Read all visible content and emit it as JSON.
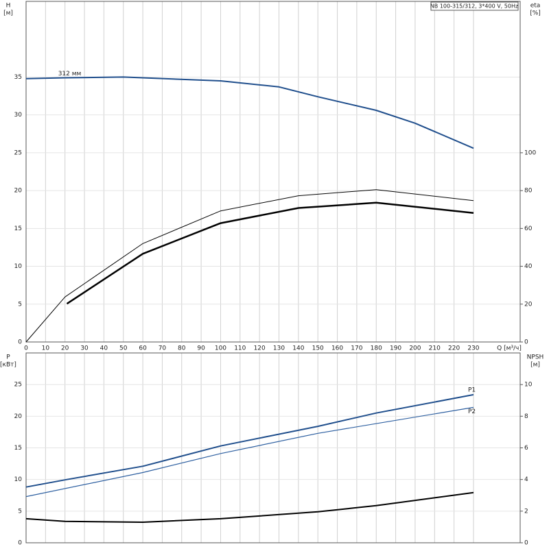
{
  "chart_data": [
    {
      "type": "line",
      "title": "NB 100-315/312, 3*400 V, 50Hz",
      "y_label": [
        "H",
        "[м]"
      ],
      "y2_label": [
        "eta",
        "[%]"
      ],
      "x_label": "Q [м³/ч]",
      "xlim": [
        0,
        254
      ],
      "xticks": [
        0,
        10,
        20,
        30,
        40,
        50,
        60,
        70,
        80,
        90,
        100,
        110,
        120,
        130,
        140,
        150,
        160,
        170,
        180,
        190,
        200,
        210,
        220,
        230
      ],
      "ylim": [
        0,
        45
      ],
      "yticks": [
        0,
        5,
        10,
        15,
        20,
        25,
        30,
        35
      ],
      "y2lim": [
        0,
        180
      ],
      "y2ticks": [
        0,
        20,
        40,
        60,
        80,
        100
      ],
      "grid": true,
      "series": [
        {
          "name": "312 мм",
          "color": "#1f4e8c",
          "width": 2,
          "x": [
            0,
            20,
            50,
            100,
            130,
            150,
            180,
            200,
            230
          ],
          "values": [
            34.8,
            34.9,
            35.0,
            34.5,
            33.7,
            32.4,
            30.6,
            28.9,
            25.6
          ]
        },
        {
          "color": "#000000",
          "width": 1,
          "axis": "y2",
          "x": [
            0,
            20,
            60,
            100,
            140,
            180,
            230
          ],
          "values": [
            0,
            23.8,
            52,
            69.3,
            77.3,
            80.5,
            74.7
          ]
        },
        {
          "color": "#000000",
          "width": 2.5,
          "axis": "y2",
          "x": [
            21,
            60,
            100,
            140,
            180,
            230
          ],
          "values": [
            20.2,
            46.6,
            62.8,
            70.8,
            73.6,
            68.2
          ]
        }
      ]
    },
    {
      "type": "line",
      "y_label": [
        "P",
        "[кВт]"
      ],
      "y2_label": [
        "NPSH",
        "[м]"
      ],
      "xlim": [
        0,
        254
      ],
      "xticks": [
        0,
        10,
        20,
        30,
        40,
        50,
        60,
        70,
        80,
        90,
        100,
        110,
        120,
        130,
        140,
        150,
        160,
        170,
        180,
        190,
        200,
        210,
        220,
        230
      ],
      "ylim": [
        0,
        30
      ],
      "yticks": [
        0,
        5,
        10,
        15,
        20,
        25
      ],
      "y2lim": [
        0,
        12
      ],
      "y2ticks": [
        0,
        2,
        4,
        6,
        8,
        10
      ],
      "grid": true,
      "series": [
        {
          "name": "P1",
          "color": "#1f4e8c",
          "width": 2,
          "x": [
            0,
            21,
            60,
            100,
            150,
            180,
            230
          ],
          "values": [
            8.8,
            10,
            12.1,
            15.3,
            18.4,
            20.5,
            23.4
          ]
        },
        {
          "name": "P2",
          "color": "#2d5fa0",
          "width": 1.2,
          "x": [
            0,
            60,
            100,
            150,
            230
          ],
          "values": [
            7.3,
            11.1,
            14.1,
            17.3,
            21.4
          ]
        },
        {
          "color": "#000000",
          "width": 2,
          "axis": "y2",
          "x": [
            0,
            20,
            60,
            100,
            150,
            180,
            230
          ],
          "values": [
            1.52,
            1.35,
            1.3,
            1.52,
            1.96,
            2.35,
            3.17
          ]
        }
      ]
    }
  ]
}
